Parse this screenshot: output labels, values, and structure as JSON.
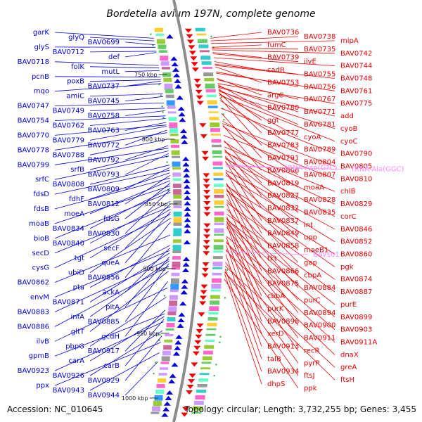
{
  "title": "Bordetella avium 197N, complete genome",
  "accession": "Accession: NC_010645",
  "summary": "Topology: circular; Length: 3,732,255 bp; Genes: 3,455",
  "colors": {
    "forward": "#0000dd",
    "reverse": "#ee0000",
    "rna": "#ff88ff",
    "backbone": "#8c8c8c",
    "tick": "#22aa22"
  },
  "scale_marks": [
    {
      "label": "750 kbp",
      "value": 750
    },
    {
      "label": "800 kbp",
      "value": 800
    },
    {
      "label": "850 kbp",
      "value": 850
    },
    {
      "label": "900 kbp",
      "value": 900
    },
    {
      "label": "950 kbp",
      "value": 950
    },
    {
      "label": "1000 kbp",
      "value": 1000
    }
  ],
  "forward_labels": [
    {
      "t": "garK",
      "kbp": 722
    },
    {
      "t": "glyQ",
      "kbp": 724
    },
    {
      "t": "BAV0699",
      "kbp": 727
    },
    {
      "t": "glyS",
      "kbp": 729
    },
    {
      "t": "BAV0712",
      "kbp": 732
    },
    {
      "t": "def",
      "kbp": 733
    },
    {
      "t": "BAV0718",
      "kbp": 743
    },
    {
      "t": "folK",
      "kbp": 745
    },
    {
      "t": "mutL",
      "kbp": 747
    },
    {
      "t": "pcnB",
      "kbp": 752
    },
    {
      "t": "poxB",
      "kbp": 754
    },
    {
      "t": "BAV0737",
      "kbp": 755
    },
    {
      "t": "mqo",
      "kbp": 757
    },
    {
      "t": "amiC",
      "kbp": 765
    },
    {
      "t": "BAV0745",
      "kbp": 767
    },
    {
      "t": "BAV0747",
      "kbp": 772
    },
    {
      "t": "BAV0749",
      "kbp": 776
    },
    {
      "t": "BAV0758",
      "kbp": 778
    },
    {
      "t": "BAV0754",
      "kbp": 782
    },
    {
      "t": "BAV0762",
      "kbp": 784
    },
    {
      "t": "BAV0763",
      "kbp": 787
    },
    {
      "t": "BAV0770",
      "kbp": 789
    },
    {
      "t": "BAV0779",
      "kbp": 790
    },
    {
      "t": "BAV0772",
      "kbp": 793
    },
    {
      "t": "BAV0778",
      "kbp": 795
    },
    {
      "t": "BAV0788",
      "kbp": 800
    },
    {
      "t": "BAV0792",
      "kbp": 805
    },
    {
      "t": "BAV0799",
      "kbp": 807
    },
    {
      "t": "srfB",
      "kbp": 809
    },
    {
      "t": "BAV0793",
      "kbp": 811
    },
    {
      "t": "srfC",
      "kbp": 813
    },
    {
      "t": "BAV0808",
      "kbp": 820
    },
    {
      "t": "BAV0809",
      "kbp": 822
    },
    {
      "t": "fdsD",
      "kbp": 824
    },
    {
      "t": "fdhF",
      "kbp": 826
    },
    {
      "t": "BAV0812",
      "kbp": 828
    },
    {
      "t": "fdsB",
      "kbp": 830
    },
    {
      "t": "moeA",
      "kbp": 832
    },
    {
      "t": "fdsG",
      "kbp": 834
    },
    {
      "t": "moaB",
      "kbp": 836
    },
    {
      "t": "BAV0834",
      "kbp": 838
    },
    {
      "t": "BAV0830",
      "kbp": 839
    },
    {
      "t": "bioB",
      "kbp": 841
    },
    {
      "t": "BAV0840",
      "kbp": 848
    },
    {
      "t": "secF",
      "kbp": 850
    },
    {
      "t": "secD",
      "kbp": 852
    },
    {
      "t": "tgt",
      "kbp": 854
    },
    {
      "t": "queA",
      "kbp": 856
    },
    {
      "t": "cysG",
      "kbp": 858
    },
    {
      "t": "ubiD",
      "kbp": 861
    },
    {
      "t": "BAV0856",
      "kbp": 864
    },
    {
      "t": "BAV0862",
      "kbp": 874
    },
    {
      "t": "pta",
      "kbp": 882
    },
    {
      "t": "ackA",
      "kbp": 884
    },
    {
      "t": "envM",
      "kbp": 886
    },
    {
      "t": "BAV0871",
      "kbp": 888
    },
    {
      "t": "pitA",
      "kbp": 891
    },
    {
      "t": "BAV0883",
      "kbp": 893
    },
    {
      "t": "infA",
      "kbp": 894
    },
    {
      "t": "BAV0885",
      "kbp": 896
    },
    {
      "t": "BAV0886",
      "kbp": 898
    },
    {
      "t": "gltT",
      "kbp": 902
    },
    {
      "t": "gcdH",
      "kbp": 910
    },
    {
      "t": "ilvB",
      "kbp": 915
    },
    {
      "t": "pbpG",
      "kbp": 922
    },
    {
      "t": "BAV0917",
      "kbp": 932
    },
    {
      "t": "gpmB",
      "kbp": 935
    },
    {
      "t": "carA",
      "kbp": 937
    },
    {
      "t": "carB",
      "kbp": 939
    },
    {
      "t": "BAV0923",
      "kbp": 941
    },
    {
      "t": "BAV0926",
      "kbp": 948
    },
    {
      "t": "BAV0929",
      "kbp": 952
    },
    {
      "t": "ppx",
      "kbp": 957
    },
    {
      "t": "BAV0943",
      "kbp": 965
    },
    {
      "t": "BAV0944",
      "kbp": 972
    }
  ],
  "reverse_labels": [
    {
      "t": "BAV0736",
      "kbp": 722
    },
    {
      "t": "BAV0738",
      "kbp": 724
    },
    {
      "t": "mipA",
      "kbp": 726
    },
    {
      "t": "fumC",
      "kbp": 729
    },
    {
      "t": "BAV0735",
      "kbp": 730
    },
    {
      "t": "BAV0742",
      "kbp": 731
    },
    {
      "t": "BAV0739",
      "kbp": 733
    },
    {
      "t": "ilvE",
      "kbp": 734
    },
    {
      "t": "BAV0744",
      "kbp": 737
    },
    {
      "t": "cadR",
      "kbp": 740
    },
    {
      "t": "BAV0755",
      "kbp": 742
    },
    {
      "t": "BAV0748",
      "kbp": 743
    },
    {
      "t": "BAV0753",
      "kbp": 744
    },
    {
      "t": "BAV0756",
      "kbp": 748
    },
    {
      "t": "BAV0761",
      "kbp": 749
    },
    {
      "t": "argC",
      "kbp": 753
    },
    {
      "t": "BAV0767",
      "kbp": 754
    },
    {
      "t": "BAV0775",
      "kbp": 757
    },
    {
      "t": "BAV0780",
      "kbp": 758
    },
    {
      "t": "BAV0771",
      "kbp": 759
    },
    {
      "t": "add",
      "kbp": 760
    },
    {
      "t": "ggt",
      "kbp": 761
    },
    {
      "t": "BAV0781",
      "kbp": 762
    },
    {
      "t": "cyoB",
      "kbp": 763
    },
    {
      "t": "BAV0777",
      "kbp": 764
    },
    {
      "t": "cyoA",
      "kbp": 765
    },
    {
      "t": "cyoC",
      "kbp": 766
    },
    {
      "t": "BAV0783",
      "kbp": 768
    },
    {
      "t": "BAV0789",
      "kbp": 770
    },
    {
      "t": "BAV0790",
      "kbp": 776
    },
    {
      "t": "BAV0791",
      "kbp": 780
    },
    {
      "t": "BAV0804",
      "kbp": 786
    },
    {
      "t": "BAV0805",
      "kbp": 788
    },
    {
      "t": "BAV0806",
      "kbp": 789
    },
    {
      "t": "BAV0807",
      "kbp": 790
    },
    {
      "t": "BAV0810",
      "kbp": 797
    },
    {
      "t": "BAV0819",
      "kbp": 801
    },
    {
      "t": "moaA",
      "kbp": 802
    },
    {
      "t": "chlB",
      "kbp": 806
    },
    {
      "t": "BAV0827",
      "kbp": 808
    },
    {
      "t": "BAV0828",
      "kbp": 809
    },
    {
      "t": "BAV0829",
      "kbp": 810
    },
    {
      "t": "BAV0832",
      "kbp": 813
    },
    {
      "t": "BAV0835",
      "kbp": 814
    },
    {
      "t": "corC",
      "kbp": 815
    },
    {
      "t": "BAV0837",
      "kbp": 817
    },
    {
      "t": "int",
      "kbp": 818
    },
    {
      "t": "BAV0846",
      "kbp": 824
    },
    {
      "t": "BAV0849",
      "kbp": 825
    },
    {
      "t": "upp",
      "kbp": 826
    },
    {
      "t": "BAV0852",
      "kbp": 828
    },
    {
      "t": "BAV0858",
      "kbp": 834
    },
    {
      "t": "maeB1",
      "kbp": 835
    },
    {
      "t": "BAV0860",
      "kbp": 836
    },
    {
      "t": "tkt",
      "kbp": 838
    },
    {
      "t": "gap",
      "kbp": 839
    },
    {
      "t": "pgk",
      "kbp": 840
    },
    {
      "t": "BAV0866",
      "kbp": 842
    },
    {
      "t": "cbpA",
      "kbp": 847
    },
    {
      "t": "BAV0874",
      "kbp": 849
    },
    {
      "t": "BAV0875",
      "kbp": 850
    },
    {
      "t": "BAV0884",
      "kbp": 854
    },
    {
      "t": "BAV0887",
      "kbp": 858
    },
    {
      "t": "cbbA",
      "kbp": 860
    },
    {
      "t": "purC",
      "kbp": 861
    },
    {
      "t": "purE",
      "kbp": 862
    },
    {
      "t": "purK",
      "kbp": 863
    },
    {
      "t": "BAV0894",
      "kbp": 864
    },
    {
      "t": "BAV0899",
      "kbp": 865
    },
    {
      "t": "BAV0898",
      "kbp": 866
    },
    {
      "t": "BAV0900",
      "kbp": 868
    },
    {
      "t": "BAV0903",
      "kbp": 875
    },
    {
      "t": "xerD",
      "kbp": 876
    },
    {
      "t": "BAV0911",
      "kbp": 879
    },
    {
      "t": "BAV0911A",
      "kbp": 880
    },
    {
      "t": "BAV0913",
      "kbp": 882
    },
    {
      "t": "recR",
      "kbp": 885
    },
    {
      "t": "dnaX",
      "kbp": 886
    },
    {
      "t": "talB",
      "kbp": 889
    },
    {
      "t": "pyrP",
      "kbp": 895
    },
    {
      "t": "greA",
      "kbp": 898
    },
    {
      "t": "BAV0934",
      "kbp": 900
    },
    {
      "t": "ftsJ",
      "kbp": 902
    },
    {
      "t": "ftsH",
      "kbp": 903
    },
    {
      "t": "dhpS",
      "kbp": 904
    },
    {
      "t": "ppk",
      "kbp": 908
    }
  ],
  "rna_labels": [
    {
      "t": "tRNA-Asp(GTC)",
      "kbp": 820
    },
    {
      "t": "tRNA-Ala(GGC)",
      "kbp": 821
    },
    {
      "t": "BAVs01",
      "kbp": 887
    }
  ]
}
